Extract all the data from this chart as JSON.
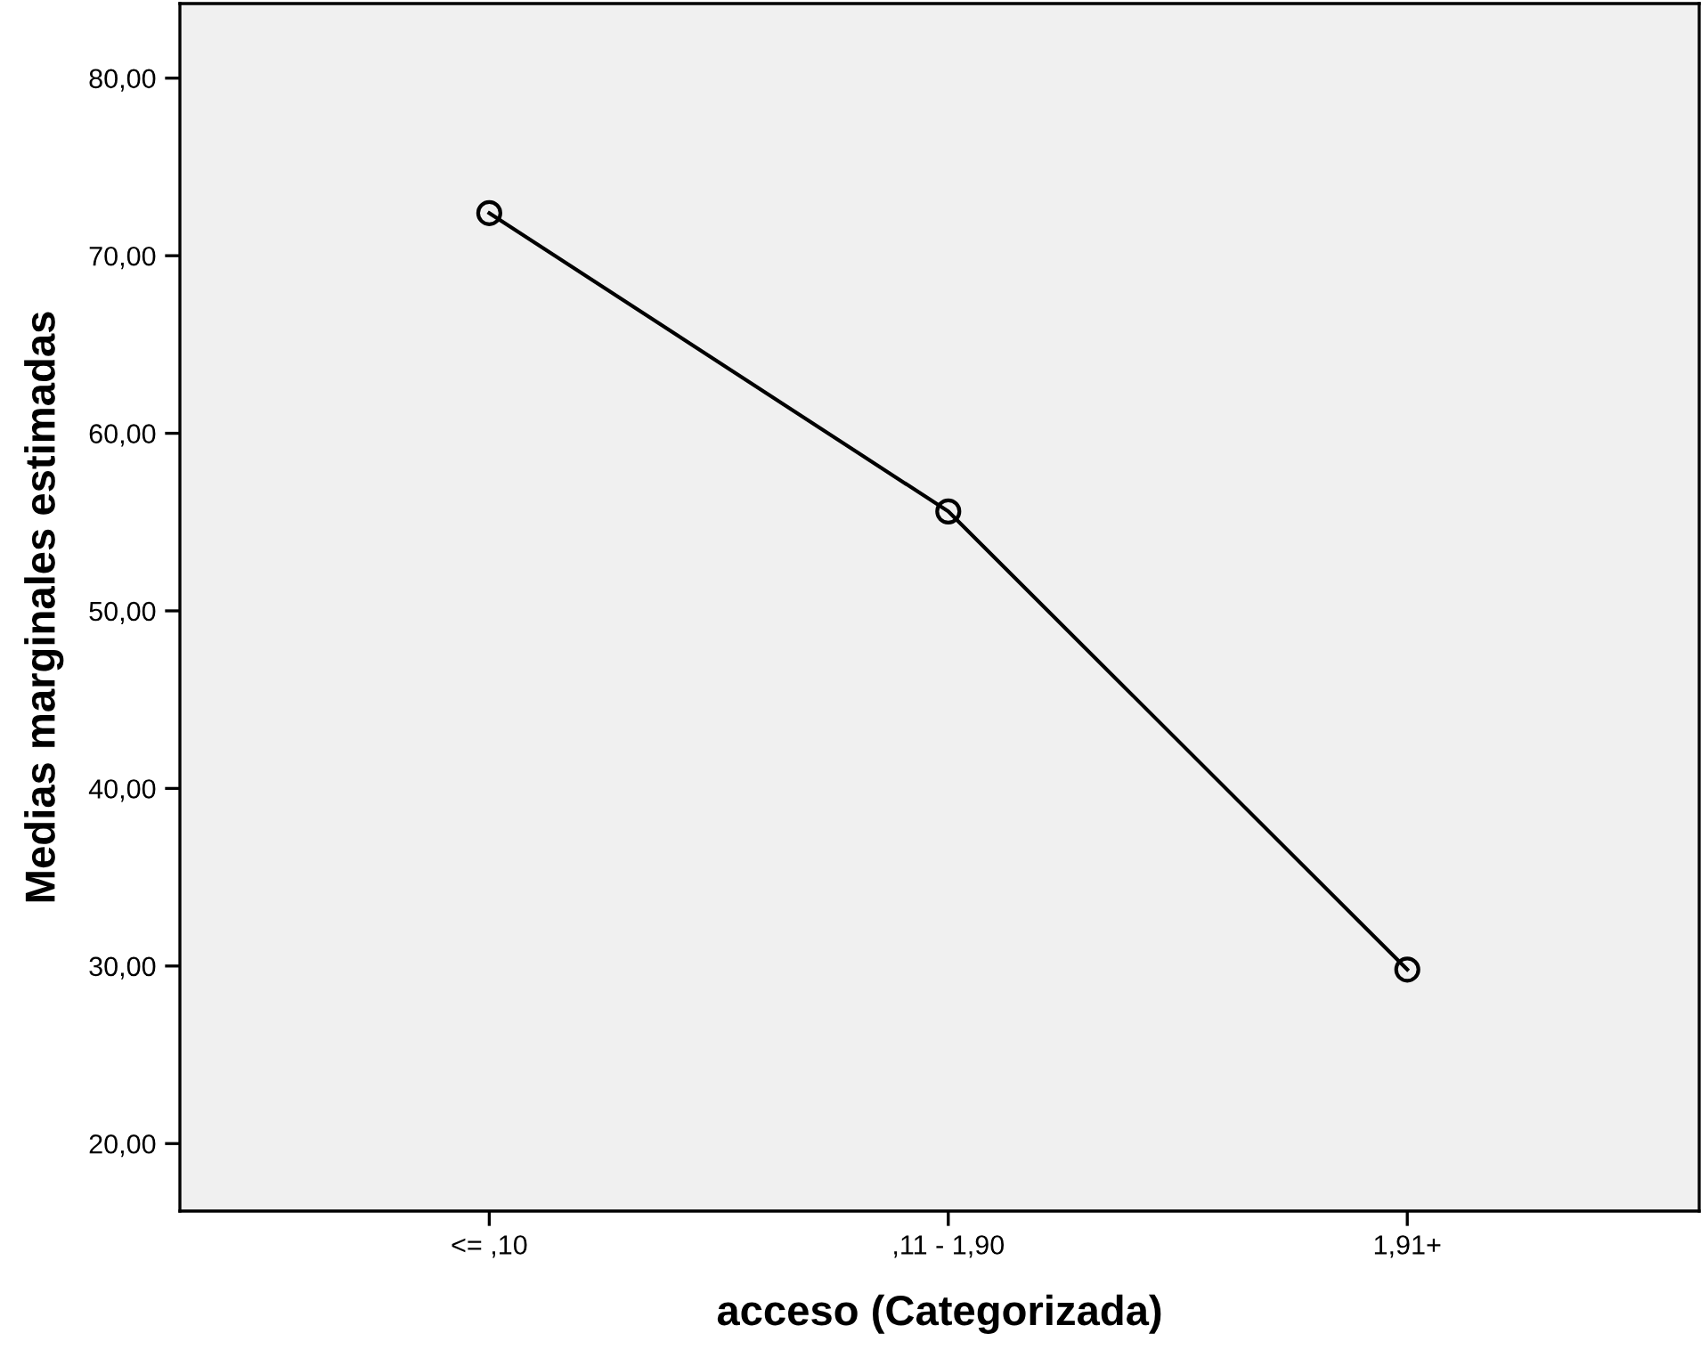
{
  "chart_data": {
    "type": "line",
    "xlabel": "acceso (Categorizada)",
    "ylabel": "Medias marginales estimadas",
    "categories": [
      "<= ,10",
      ",11 - 1,90",
      "1,91+"
    ],
    "series": [
      {
        "color": "#000000",
        "values": [
          72.4,
          55.6,
          29.8
        ]
      }
    ],
    "ylim": [
      16.2,
      84.2
    ],
    "yticks": [
      {
        "value": 20,
        "label": "20,00"
      },
      {
        "value": 30,
        "label": "30,00"
      },
      {
        "value": 40,
        "label": "40,00"
      },
      {
        "value": 50,
        "label": "50,00"
      },
      {
        "value": 60,
        "label": "60,00"
      },
      {
        "value": 70,
        "label": "70,00"
      },
      {
        "value": 80,
        "label": "80,00"
      }
    ],
    "marker": "circle",
    "line_style": "solid",
    "grid": false,
    "legend": false
  }
}
